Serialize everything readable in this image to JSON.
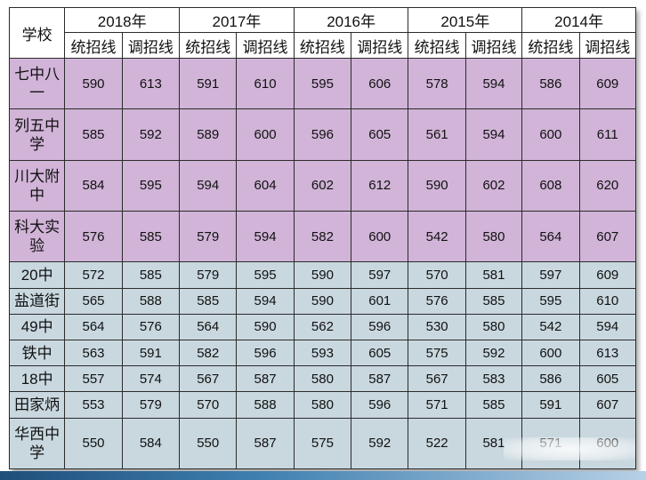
{
  "header": {
    "school_label": "学校",
    "years": [
      "2018年",
      "2017年",
      "2016年",
      "2015年",
      "2014年"
    ],
    "sub_labels": [
      "统招线",
      "调招线"
    ]
  },
  "rows": [
    {
      "school": "七中八一",
      "group": "purple",
      "values": [
        "590",
        "613",
        "591",
        "610",
        "595",
        "606",
        "578",
        "594",
        "586",
        "609"
      ]
    },
    {
      "school": "列五中学",
      "group": "purple",
      "values": [
        "585",
        "592",
        "589",
        "600",
        "596",
        "605",
        "561",
        "594",
        "600",
        "611"
      ]
    },
    {
      "school": "川大附中",
      "group": "purple",
      "values": [
        "584",
        "595",
        "594",
        "604",
        "602",
        "612",
        "590",
        "602",
        "608",
        "620"
      ]
    },
    {
      "school": "科大实验",
      "group": "purple",
      "values": [
        "576",
        "585",
        "579",
        "594",
        "582",
        "600",
        "542",
        "580",
        "564",
        "607"
      ]
    },
    {
      "school": "20中",
      "group": "blue",
      "values": [
        "572",
        "585",
        "579",
        "595",
        "590",
        "597",
        "570",
        "581",
        "597",
        "609"
      ]
    },
    {
      "school": "盐道街",
      "group": "blue",
      "values": [
        "565",
        "588",
        "585",
        "594",
        "590",
        "601",
        "576",
        "585",
        "595",
        "610"
      ]
    },
    {
      "school": "49中",
      "group": "blue",
      "values": [
        "564",
        "576",
        "564",
        "590",
        "562",
        "596",
        "530",
        "580",
        "542",
        "594"
      ]
    },
    {
      "school": "铁中",
      "group": "blue",
      "values": [
        "563",
        "591",
        "582",
        "596",
        "593",
        "605",
        "575",
        "592",
        "600",
        "613"
      ]
    },
    {
      "school": "18中",
      "group": "blue",
      "values": [
        "557",
        "574",
        "567",
        "587",
        "580",
        "587",
        "567",
        "583",
        "586",
        "605"
      ]
    },
    {
      "school": "田家炳",
      "group": "blue",
      "values": [
        "553",
        "579",
        "570",
        "588",
        "580",
        "596",
        "571",
        "585",
        "591",
        "607"
      ]
    },
    {
      "school": "华西中学",
      "group": "blue",
      "values": [
        "550",
        "584",
        "550",
        "587",
        "575",
        "592",
        "522",
        "581",
        "571",
        "600"
      ]
    }
  ],
  "colors": {
    "purple_row": "#d1b4d8",
    "blue_row": "#c9d8df",
    "header": "#ffffff",
    "border": "#2b2b2b"
  }
}
